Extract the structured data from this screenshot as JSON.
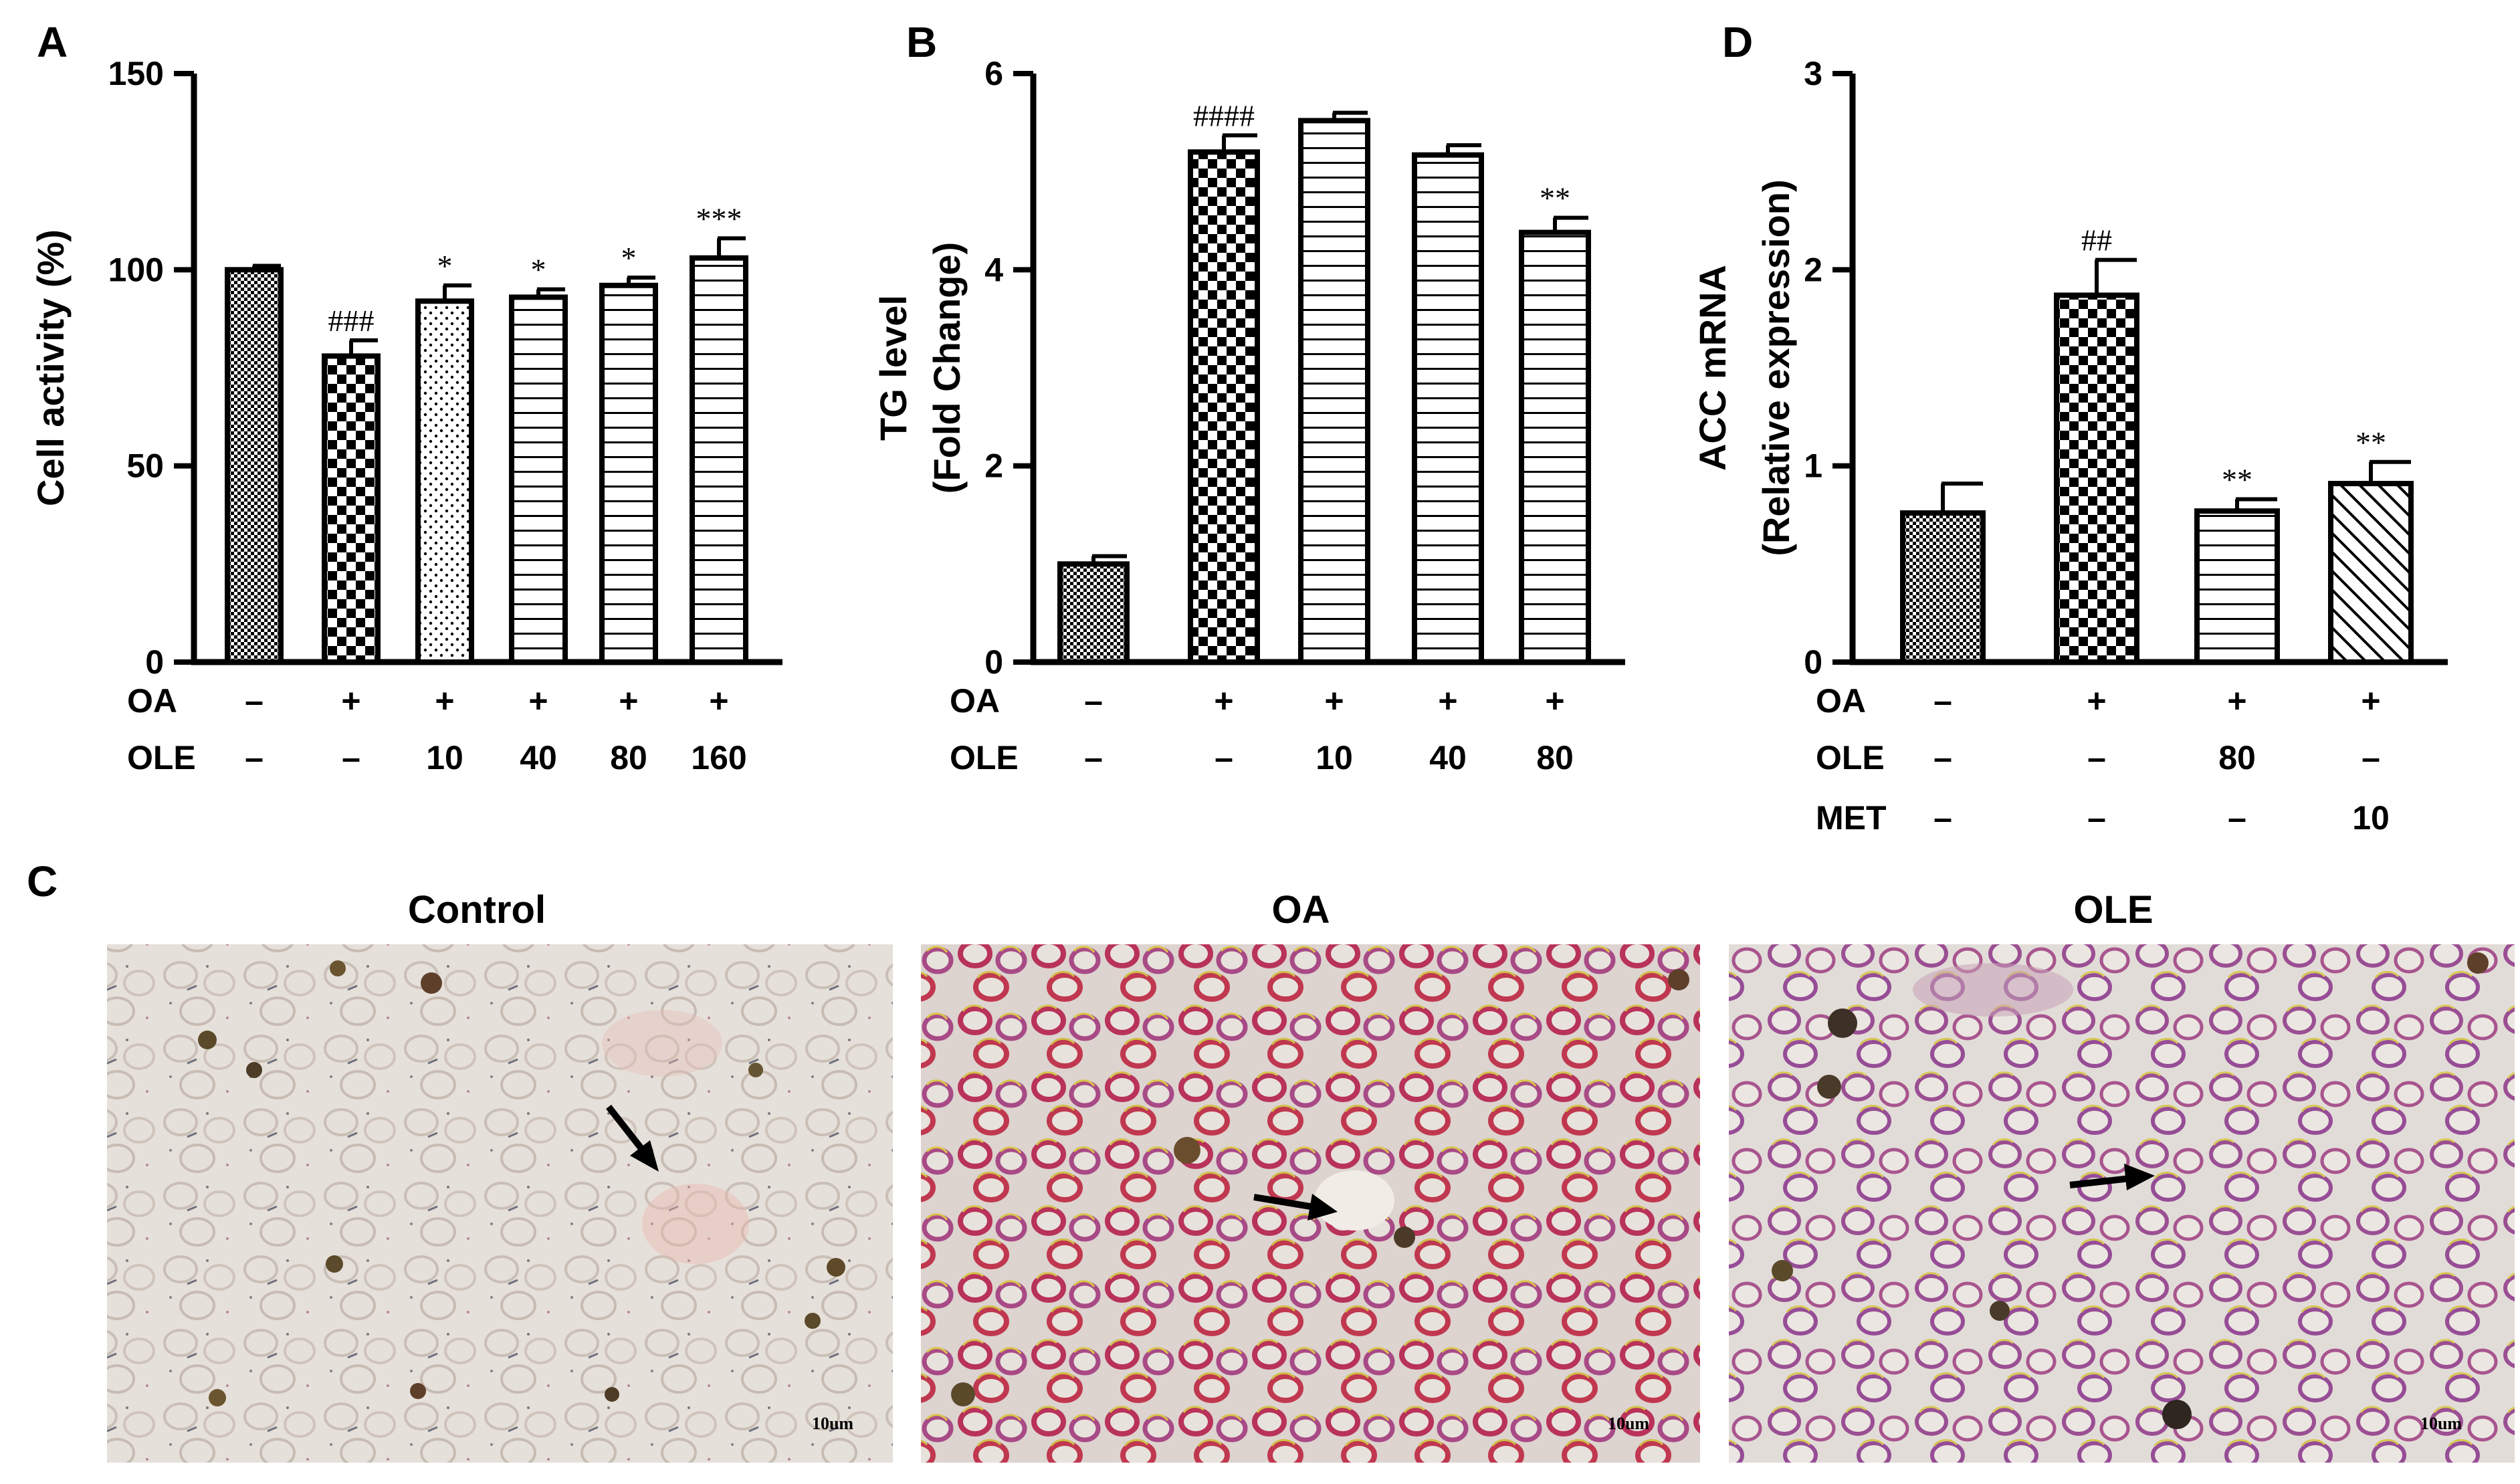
{
  "colors": {
    "axis": "#000000",
    "bar_fill": "#ffffff",
    "pattern": "#000000",
    "micrograph_bg": "#e3dcd6",
    "lipid_stain": "#b8325a",
    "arrow": "#000000"
  },
  "chart_data": [
    {
      "panel": "A",
      "type": "bar",
      "ylabel": "Cell activity (%)",
      "ylim": [
        0,
        150
      ],
      "yticks": [
        "0",
        "50",
        "100",
        "150"
      ],
      "values": [
        100,
        78,
        92,
        93,
        96,
        103
      ],
      "errors": [
        1,
        4,
        4,
        2,
        2,
        5
      ],
      "patterns": [
        "fine-check",
        "check",
        "dots",
        "hlines",
        "hlines",
        "hlines"
      ],
      "significance": [
        "",
        "###",
        "*",
        "*",
        "*",
        "***"
      ],
      "condition_rows": [
        {
          "label": "OA",
          "values": [
            "–",
            "+",
            "+",
            "+",
            "+",
            "+"
          ]
        },
        {
          "label": "OLE",
          "values": [
            "–",
            "–",
            "10",
            "40",
            "80",
            "160"
          ]
        }
      ]
    },
    {
      "panel": "B",
      "type": "bar",
      "ylabel": "TG level",
      "ylabel2": "(Fold Change)",
      "ylim": [
        0,
        6
      ],
      "yticks": [
        "0",
        "2",
        "4",
        "6"
      ],
      "values": [
        1.0,
        5.2,
        5.52,
        5.17,
        4.38
      ],
      "errors": [
        0.08,
        0.17,
        0.08,
        0.1,
        0.15
      ],
      "patterns": [
        "fine-check",
        "check",
        "hlines",
        "hlines",
        "hlines"
      ],
      "significance": [
        "",
        "####",
        "",
        "",
        "**"
      ],
      "condition_rows": [
        {
          "label": "OA",
          "values": [
            "–",
            "+",
            "+",
            "+",
            "+"
          ]
        },
        {
          "label": "OLE",
          "values": [
            "–",
            "–",
            "10",
            "40",
            "80"
          ]
        }
      ]
    },
    {
      "panel": "D",
      "type": "bar",
      "ylabel": "ACC mRNA",
      "ylabel2": "(Relative expression)",
      "ylim": [
        0,
        3
      ],
      "yticks": [
        "0",
        "1",
        "2",
        "3"
      ],
      "values": [
        0.76,
        1.87,
        0.77,
        0.91
      ],
      "errors": [
        0.15,
        0.18,
        0.06,
        0.11
      ],
      "patterns": [
        "fine-check",
        "check",
        "hlines",
        "diag"
      ],
      "significance": [
        "",
        "##",
        "**",
        "**"
      ],
      "condition_rows": [
        {
          "label": "OA",
          "values": [
            "–",
            "+",
            "+",
            "+"
          ]
        },
        {
          "label": "OLE",
          "values": [
            "–",
            "–",
            "80",
            "–"
          ]
        },
        {
          "label": "MET",
          "values": [
            "–",
            "–",
            "–",
            "10"
          ]
        }
      ]
    }
  ],
  "panel_c": {
    "letter": "C",
    "images": [
      {
        "title": "Control",
        "scale": "10um",
        "stain_level": 0.08
      },
      {
        "title": "OA",
        "scale": "10um",
        "stain_level": 0.85
      },
      {
        "title": "OLE",
        "scale": "10um",
        "stain_level": 0.45
      }
    ]
  }
}
